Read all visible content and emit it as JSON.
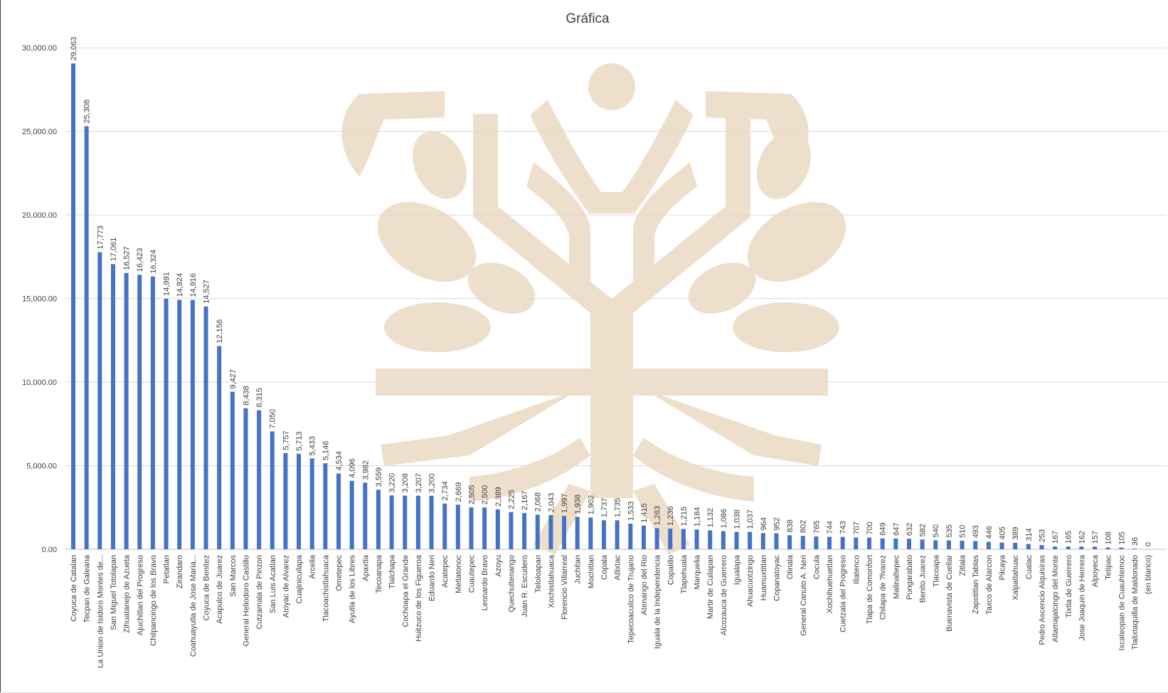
{
  "colors": {
    "bar": "#4472C4",
    "grid": "#d9d9d9",
    "text": "#404040",
    "watermark": "#e8d4bd"
  },
  "watermark_icon": "tree-logo-watermark",
  "chart_data": {
    "type": "bar",
    "title": "Gráfica",
    "xlabel": "",
    "ylabel": "",
    "ylim": [
      0,
      30000
    ],
    "yticks": [
      0,
      5000,
      10000,
      15000,
      20000,
      25000,
      30000
    ],
    "ytick_labels": [
      "0.00",
      "5,000.00",
      "10,000.00",
      "15,000.00",
      "20,000.00",
      "25,000.00",
      "30,000.00"
    ],
    "grid": true,
    "legend": "none",
    "categories": [
      "Coyuca de Catalan",
      "Tecpan de Galeana",
      "La Union de Isidoro Montes de...",
      "San Miguel Totolapan",
      "Zihuatanejo de Azueta",
      "Ajuchitlan del Progreso",
      "Chilpancingo de los Bravo",
      "Petatlan",
      "Zirandaro",
      "Coahuayutla de Jose Maria...",
      "Coyuca de Benitez",
      "Acapulco de Juarez",
      "San Marcos",
      "General Heliodoro Castillo",
      "Cutzamala de Pinzon",
      "San Luis Acatlan",
      "Atoyac de Alvarez",
      "Cuajinicuilapa",
      "Arcelia",
      "Tlacoachistlahuaca",
      "Ometepec",
      "Ayutla de los Libres",
      "Apaxtla",
      "Tecoanapa",
      "Tlalchapa",
      "Cochoapa el Grande",
      "Huitzuco de los Figueroa",
      "Eduardo Neri",
      "Acatepec",
      "Metlatonoc",
      "Cuautepec",
      "Leonardo Bravo",
      "Azoyu",
      "Quechultenango",
      "Juan R. Escudero",
      "Teloloapan",
      "Xochistlahuaca",
      "Florencio Villarreal",
      "Juchitan",
      "Mochitlan",
      "Copala",
      "Atlixtac",
      "Tepecoacuilco de Trujano",
      "Atenango del Rio",
      "Iguala de la Independencia",
      "Copalillo",
      "Tlapehuala",
      "Marquelia",
      "Martir de Cuilapan",
      "Alcozauca de Guerrero",
      "Igualapa",
      "Ahuacuotzingo",
      "Huamuxtitlan",
      "Copanatoyac",
      "Olinala",
      "General Canuto A. Neri",
      "Cocula",
      "Xochihuehuetlan",
      "Cuetzala del Progreso",
      "Iliatenco",
      "Tlapa de Comonfort",
      "Chilapa de ?lvarez",
      "Malinaltepec",
      "Pungarabato",
      "Benito Juarez",
      "Tlacoapa",
      "Buenavista de Cuellar",
      "Zitlala",
      "Zapotitlan Tablas",
      "Taxco de Alarcon",
      "Pilcaya",
      "Xalpatlahuac",
      "Cualac",
      "Pedro Ascencio Alquisiras",
      "Atlamajalcingo del Monte",
      "Tixtla de Guerrero",
      "Jose Joaquin de Herrera",
      "Alpoyeca",
      "Tetipac",
      "Ixcateopan de Cuauhtemoc",
      "Tlalixtaquilla de Maldonado",
      "(en blanco)"
    ],
    "values": [
      29063,
      25308,
      17773,
      17061,
      16527,
      16423,
      16324,
      14991,
      14924,
      14916,
      14527,
      12156,
      9427,
      8438,
      8315,
      7050,
      5757,
      5713,
      5433,
      5146,
      4534,
      4096,
      3982,
      3559,
      3220,
      3208,
      3207,
      3200,
      2734,
      2669,
      2505,
      2500,
      2389,
      2225,
      2167,
      2068,
      2043,
      1997,
      1938,
      1902,
      1737,
      1735,
      1533,
      1415,
      1263,
      1236,
      1215,
      1184,
      1132,
      1086,
      1038,
      1037,
      964,
      952,
      838,
      802,
      765,
      744,
      743,
      707,
      700,
      649,
      647,
      632,
      582,
      540,
      535,
      510,
      493,
      446,
      405,
      389,
      314,
      253,
      167,
      165,
      162,
      157,
      108,
      105,
      36,
      0
    ],
    "data_labels": [
      "29,063",
      "25,308",
      "17,773",
      "17,061",
      "16,527",
      "16,423",
      "16,324",
      "14,991",
      "14,924",
      "14,916",
      "14,527",
      "12,156",
      "9,427",
      "8,438",
      "8,315",
      "7,050",
      "5,757",
      "5,713",
      "5,433",
      "5,146",
      "4,534",
      "4,096",
      "3,982",
      "3,559",
      "3,220",
      "3,208",
      "3,207",
      "3,200",
      "2,734",
      "2,669",
      "2,505",
      "2,500",
      "2,389",
      "2,225",
      "2,167",
      "2,068",
      "2,043",
      "1,997",
      "1,938",
      "1,902",
      "1,737",
      "1,735",
      "1,533",
      "1,415",
      "1,263",
      "1,236",
      "1,215",
      "1,184",
      "1,132",
      "1,086",
      "1,038",
      "1,037",
      "964",
      "952",
      "838",
      "802",
      "765",
      "744",
      "743",
      "707",
      "700",
      "649",
      "647",
      "632",
      "582",
      "540",
      "535",
      "510",
      "493",
      "446",
      "405",
      "389",
      "314",
      "253",
      "167",
      "165",
      "162",
      "157",
      "108",
      "105",
      "36",
      "0"
    ]
  }
}
